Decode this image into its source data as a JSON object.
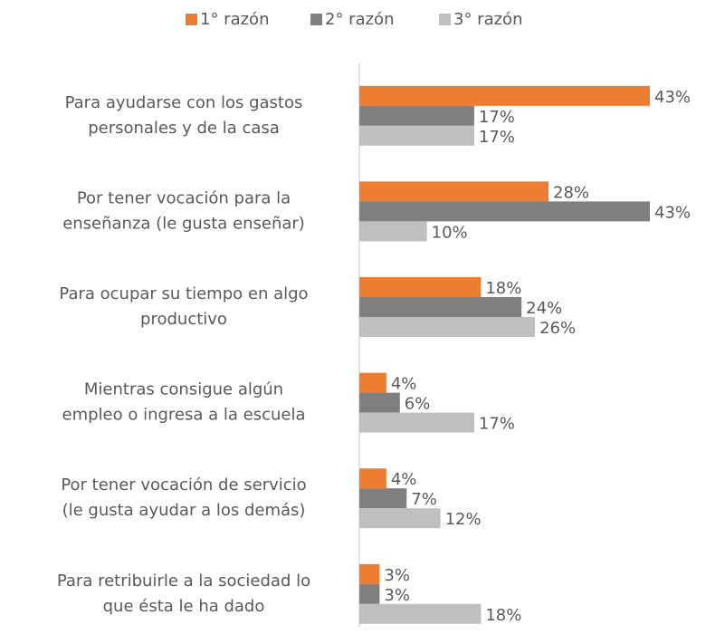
{
  "chart_data": {
    "type": "hbar",
    "categories": [
      "Para ayudarse con los gastos\npersonales y de la casa",
      "Por tener vocación para la\nenseñanza (le gusta enseñar)",
      "Para ocupar su tiempo en algo\nproductivo",
      "Mientras consigue algún\nempleo  o ingresa a la escuela",
      "Por tener vocación de servicio\n(le gusta  ayudar a los demás)",
      "Para retribuirle a la sociedad lo\nque ésta le ha dado"
    ],
    "series": [
      {
        "name": "1° razón",
        "color": "#ed7d31",
        "values": [
          43,
          28,
          18,
          4,
          4,
          3
        ],
        "value_labels": [
          "43%",
          "28%",
          "18%",
          "4%",
          "4%",
          "3%"
        ]
      },
      {
        "name": "2° razón",
        "color": "#7f7f7f",
        "values": [
          17,
          43,
          24,
          6,
          7,
          3
        ],
        "value_labels": [
          "17%",
          "43%",
          "24%",
          "6%",
          "7%",
          "3%"
        ]
      },
      {
        "name": "3° razón",
        "color": "#bfbfbf",
        "values": [
          17,
          10,
          26,
          17,
          12,
          18
        ],
        "value_labels": [
          "17%",
          "10%",
          "26%",
          "17%",
          "12%",
          "18%"
        ]
      }
    ],
    "xlim": [
      0,
      43
    ],
    "legend": "top"
  }
}
